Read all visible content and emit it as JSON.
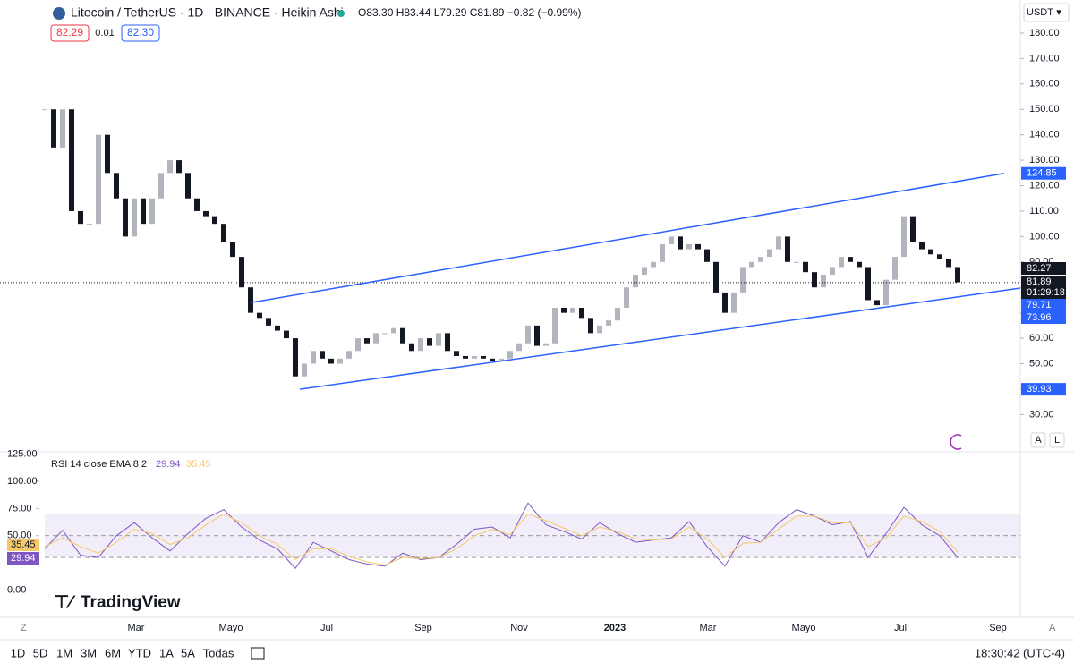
{
  "header": {
    "symbol": "Litecoin / TetherUS · 1D · BINANCE · Heikin Ashi",
    "ohlc": "O83.30 H83.44 L79.29 C81.89 −0.82 (−0.99%)",
    "bid": "82.29",
    "spread": "0.01",
    "ask": "82.30",
    "currency": "USDT"
  },
  "chart_data": [
    {
      "type": "candlestick",
      "up_color": "#b2b5be",
      "down_color": "#131722",
      "close": [
        150,
        135,
        150,
        110,
        105,
        105,
        140,
        125,
        115,
        100,
        115,
        105,
        115,
        125,
        130,
        125,
        115,
        110,
        108,
        105,
        98,
        92,
        80,
        70,
        68,
        65,
        63,
        60,
        45,
        50,
        55,
        52,
        50,
        52,
        55,
        60,
        58,
        62,
        62,
        64,
        58,
        55,
        60,
        57,
        62,
        55,
        53,
        52,
        53,
        52,
        51,
        52,
        55,
        58,
        65,
        57,
        58,
        72,
        70,
        72,
        68,
        62,
        65,
        67,
        72,
        80,
        85,
        88,
        90,
        97,
        100,
        95,
        97,
        95,
        90,
        78,
        70,
        78,
        88,
        90,
        92,
        95,
        100,
        90,
        90,
        86,
        80,
        85,
        88,
        92,
        90,
        88,
        75,
        73,
        83,
        92,
        108,
        98,
        95,
        93,
        91,
        88,
        82
      ],
      "ylim": [
        15,
        193
      ],
      "yticks": [
        {
          "value": 180,
          "label": "180.00"
        },
        {
          "value": 170,
          "label": "170.00"
        },
        {
          "value": 160,
          "label": "160.00"
        },
        {
          "value": 150,
          "label": "150.00"
        },
        {
          "value": 140,
          "label": "140.00"
        },
        {
          "value": 130,
          "label": "130.00"
        },
        {
          "value": 120,
          "label": "120.00"
        },
        {
          "value": 110,
          "label": "110.00"
        },
        {
          "value": 100,
          "label": "100.00"
        },
        {
          "value": 90,
          "label": "90.00"
        },
        {
          "value": 80,
          "label": "80.00"
        },
        {
          "value": 70,
          "label": "70.00"
        },
        {
          "value": 60,
          "label": "60.00"
        },
        {
          "value": 50,
          "label": "50.00"
        },
        {
          "value": 40,
          "label": "40.00"
        },
        {
          "value": 30,
          "label": "30.00"
        }
      ],
      "current_price": 81.89,
      "channel": {
        "upper": [
          74,
          124.85
        ],
        "lower": [
          39.93,
          79.71
        ]
      },
      "axis_tags": [
        "82.27",
        "81.89",
        "01:29:18",
        "73.96"
      ],
      "xticks": [
        "Mar",
        "Mayo",
        "Jul",
        "Sep",
        "Nov",
        "2023",
        "Mar",
        "Mayo",
        "Jul",
        "Sep"
      ]
    },
    {
      "type": "line",
      "title": "RSI 14 close EMA 8 2",
      "last_rsi": "29.94",
      "last_ema": "35.45",
      "series": [
        {
          "name": "RSI",
          "color": "#7e57c2",
          "values": [
            38,
            55,
            32,
            30,
            50,
            62,
            48,
            36,
            52,
            66,
            74,
            58,
            46,
            38,
            20,
            44,
            36,
            28,
            24,
            22,
            34,
            28,
            30,
            42,
            56,
            58,
            48,
            80,
            60,
            54,
            47,
            62,
            52,
            44,
            46,
            48,
            63,
            40,
            22,
            50,
            44,
            62,
            74,
            68,
            60,
            63,
            30,
            52,
            76,
            60,
            50,
            30
          ]
        },
        {
          "name": "EMA",
          "color": "#f5c96a",
          "values": [
            40,
            48,
            40,
            34,
            44,
            56,
            52,
            42,
            48,
            60,
            70,
            62,
            50,
            42,
            28,
            38,
            38,
            31,
            26,
            23,
            30,
            29,
            30,
            38,
            50,
            56,
            51,
            70,
            64,
            57,
            50,
            58,
            54,
            47,
            46,
            47,
            58,
            47,
            30,
            43,
            44,
            56,
            68,
            68,
            62,
            62,
            40,
            48,
            68,
            63,
            54,
            35
          ]
        }
      ],
      "bands": [
        30,
        50,
        70
      ],
      "ylim": [
        -25,
        123
      ],
      "yticks": [
        {
          "value": 125,
          "label": "125.00"
        },
        {
          "value": 100,
          "label": "100.00"
        },
        {
          "value": 75,
          "label": "75.00"
        },
        {
          "value": 50,
          "label": "50.00"
        },
        {
          "value": 25,
          "label": "25.00"
        },
        {
          "value": 0,
          "label": "0.00"
        }
      ]
    }
  ],
  "logo": "TradingView",
  "toolbar": {
    "ranges": [
      "1D",
      "5D",
      "1M",
      "3M",
      "6M",
      "YTD",
      "1A",
      "5A",
      "Todas"
    ],
    "clock": "18:30:42 (UTC-4)",
    "scale_buttons": [
      "A",
      "L"
    ]
  }
}
